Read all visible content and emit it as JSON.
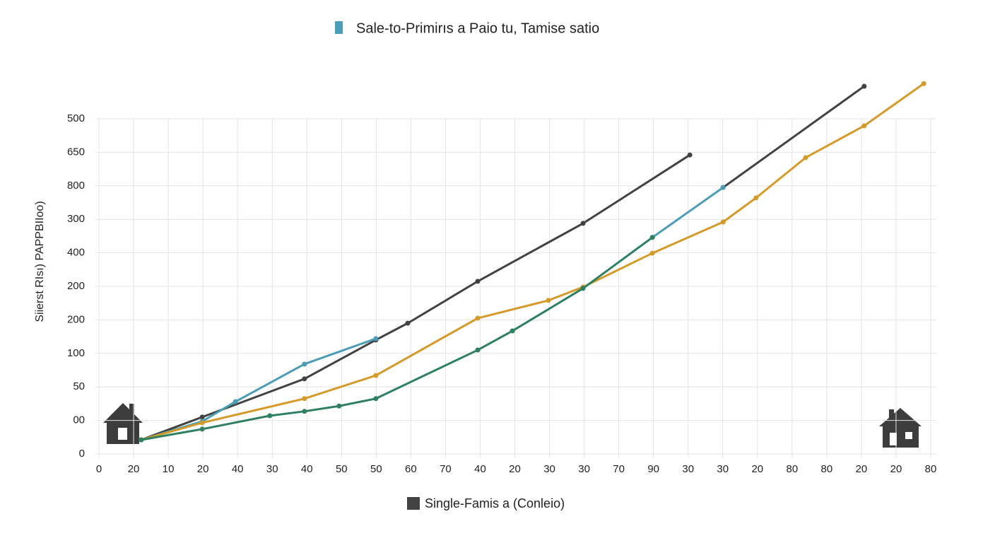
{
  "chart_data": {
    "type": "line",
    "title": "Sale-to-Primirıs a Paio  tu, Tamise satio",
    "y_label": "Siіerst RIsı) PAPPBIIoo)",
    "xlim": [
      0,
      24
    ],
    "xticks": [
      {
        "value": 0,
        "label": "0"
      },
      {
        "value": 1,
        "label": "20"
      },
      {
        "value": 2,
        "label": "10"
      },
      {
        "value": 3,
        "label": "20"
      },
      {
        "value": 4,
        "label": "40"
      },
      {
        "value": 5,
        "label": "30"
      },
      {
        "value": 6,
        "label": "40"
      },
      {
        "value": 7,
        "label": "50"
      },
      {
        "value": 8,
        "label": "50"
      },
      {
        "value": 9,
        "label": "60"
      },
      {
        "value": 10,
        "label": "70"
      },
      {
        "value": 11,
        "label": "40"
      },
      {
        "value": 12,
        "label": "20"
      },
      {
        "value": 13,
        "label": "30"
      },
      {
        "value": 14,
        "label": "30"
      },
      {
        "value": 15,
        "label": "70"
      },
      {
        "value": 16,
        "label": "90"
      },
      {
        "value": 17,
        "label": "30"
      },
      {
        "value": 18,
        "label": "30"
      },
      {
        "value": 19,
        "label": "20"
      },
      {
        "value": 20,
        "label": "80"
      },
      {
        "value": 21,
        "label": "80"
      },
      {
        "value": 22,
        "label": "20"
      },
      {
        "value": 23,
        "label": "20"
      },
      {
        "value": 24,
        "label": "80"
      }
    ],
    "ylim": [
      0,
      10
    ],
    "yticks": [
      0,
      {
        "value": 1,
        "label": "00"
      },
      {
        "value": 2,
        "label": "50"
      },
      {
        "value": 3,
        "label": "100"
      },
      {
        "value": 4,
        "label": "200"
      },
      {
        "value": 5,
        "label": "200"
      },
      {
        "value": 6,
        "label": "400"
      },
      {
        "value": 7,
        "label": "300"
      },
      {
        "value": 8,
        "label": "800"
      },
      {
        "value": 9,
        "label": "650"
      },
      {
        "value": 10,
        "label": "500"
      }
    ],
    "grid": true,
    "legend": "bottom",
    "series": [
      {
        "name": "Single-Famis a (Conleio)",
        "color": "#424242",
        "x": [
          1.22,
          2.98,
          5.93,
          7.99,
          8.91,
          10.93,
          13.97,
          17.05,
          null,
          18.01,
          22.08
        ],
        "values": [
          0.42,
          1.1,
          2.24,
          3.4,
          3.9,
          5.15,
          6.88,
          8.92,
          null,
          7.95,
          10.97
        ]
      },
      {
        "color": "#4a9db5",
        "x": [
          1.22,
          2.98,
          3.94,
          5.93,
          7.99,
          null,
          15.97,
          18.01
        ],
        "values": [
          0.42,
          0.97,
          1.56,
          2.68,
          3.44,
          null,
          6.46,
          7.95
        ]
      },
      {
        "color": "#d49a2a",
        "x": [
          1.22,
          2.98,
          5.93,
          7.99,
          10.93,
          12.97,
          13.97,
          15.97,
          18.01,
          18.96,
          20.39,
          22.08,
          23.8
        ],
        "values": [
          0.42,
          0.93,
          1.65,
          2.34,
          4.05,
          4.58,
          4.98,
          5.99,
          6.92,
          7.64,
          8.84,
          9.79,
          11.05
        ]
      },
      {
        "color": "#2e8060",
        "x": [
          1.22,
          2.98,
          4.93,
          5.93,
          6.93,
          7.99,
          10.93,
          11.93,
          13.97,
          15.97
        ],
        "values": [
          0.42,
          0.74,
          1.14,
          1.27,
          1.43,
          1.65,
          3.1,
          3.67,
          4.94,
          6.46
        ]
      }
    ]
  }
}
